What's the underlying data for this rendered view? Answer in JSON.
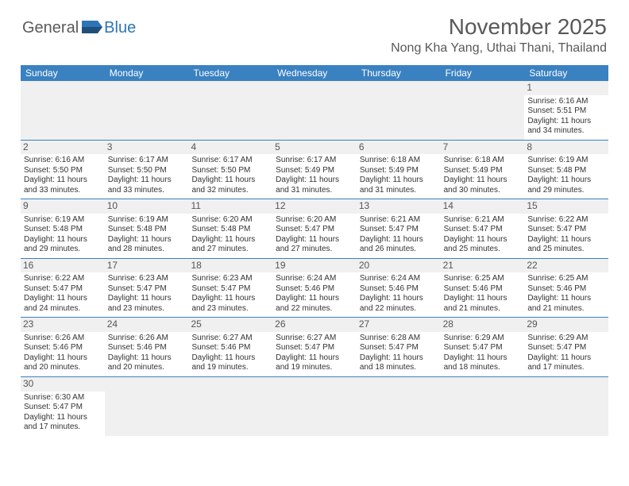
{
  "brand": {
    "part1": "General",
    "part2": "Blue"
  },
  "title": "November 2025",
  "location": "Nong Kha Yang, Uthai Thani, Thailand",
  "colors": {
    "header_bg": "#3a81c1",
    "header_text": "#ffffff",
    "daynum_bg": "#f0f0f0",
    "border": "#3a81c1",
    "title_color": "#595959",
    "text_color": "#333333"
  },
  "day_labels": [
    "Sunday",
    "Monday",
    "Tuesday",
    "Wednesday",
    "Thursday",
    "Friday",
    "Saturday"
  ],
  "weeks": [
    [
      null,
      null,
      null,
      null,
      null,
      null,
      {
        "n": "1",
        "sr": "Sunrise: 6:16 AM",
        "ss": "Sunset: 5:51 PM",
        "dl": "Daylight: 11 hours and 34 minutes."
      }
    ],
    [
      {
        "n": "2",
        "sr": "Sunrise: 6:16 AM",
        "ss": "Sunset: 5:50 PM",
        "dl": "Daylight: 11 hours and 33 minutes."
      },
      {
        "n": "3",
        "sr": "Sunrise: 6:17 AM",
        "ss": "Sunset: 5:50 PM",
        "dl": "Daylight: 11 hours and 33 minutes."
      },
      {
        "n": "4",
        "sr": "Sunrise: 6:17 AM",
        "ss": "Sunset: 5:50 PM",
        "dl": "Daylight: 11 hours and 32 minutes."
      },
      {
        "n": "5",
        "sr": "Sunrise: 6:17 AM",
        "ss": "Sunset: 5:49 PM",
        "dl": "Daylight: 11 hours and 31 minutes."
      },
      {
        "n": "6",
        "sr": "Sunrise: 6:18 AM",
        "ss": "Sunset: 5:49 PM",
        "dl": "Daylight: 11 hours and 31 minutes."
      },
      {
        "n": "7",
        "sr": "Sunrise: 6:18 AM",
        "ss": "Sunset: 5:49 PM",
        "dl": "Daylight: 11 hours and 30 minutes."
      },
      {
        "n": "8",
        "sr": "Sunrise: 6:19 AM",
        "ss": "Sunset: 5:48 PM",
        "dl": "Daylight: 11 hours and 29 minutes."
      }
    ],
    [
      {
        "n": "9",
        "sr": "Sunrise: 6:19 AM",
        "ss": "Sunset: 5:48 PM",
        "dl": "Daylight: 11 hours and 29 minutes."
      },
      {
        "n": "10",
        "sr": "Sunrise: 6:19 AM",
        "ss": "Sunset: 5:48 PM",
        "dl": "Daylight: 11 hours and 28 minutes."
      },
      {
        "n": "11",
        "sr": "Sunrise: 6:20 AM",
        "ss": "Sunset: 5:48 PM",
        "dl": "Daylight: 11 hours and 27 minutes."
      },
      {
        "n": "12",
        "sr": "Sunrise: 6:20 AM",
        "ss": "Sunset: 5:47 PM",
        "dl": "Daylight: 11 hours and 27 minutes."
      },
      {
        "n": "13",
        "sr": "Sunrise: 6:21 AM",
        "ss": "Sunset: 5:47 PM",
        "dl": "Daylight: 11 hours and 26 minutes."
      },
      {
        "n": "14",
        "sr": "Sunrise: 6:21 AM",
        "ss": "Sunset: 5:47 PM",
        "dl": "Daylight: 11 hours and 25 minutes."
      },
      {
        "n": "15",
        "sr": "Sunrise: 6:22 AM",
        "ss": "Sunset: 5:47 PM",
        "dl": "Daylight: 11 hours and 25 minutes."
      }
    ],
    [
      {
        "n": "16",
        "sr": "Sunrise: 6:22 AM",
        "ss": "Sunset: 5:47 PM",
        "dl": "Daylight: 11 hours and 24 minutes."
      },
      {
        "n": "17",
        "sr": "Sunrise: 6:23 AM",
        "ss": "Sunset: 5:47 PM",
        "dl": "Daylight: 11 hours and 23 minutes."
      },
      {
        "n": "18",
        "sr": "Sunrise: 6:23 AM",
        "ss": "Sunset: 5:47 PM",
        "dl": "Daylight: 11 hours and 23 minutes."
      },
      {
        "n": "19",
        "sr": "Sunrise: 6:24 AM",
        "ss": "Sunset: 5:46 PM",
        "dl": "Daylight: 11 hours and 22 minutes."
      },
      {
        "n": "20",
        "sr": "Sunrise: 6:24 AM",
        "ss": "Sunset: 5:46 PM",
        "dl": "Daylight: 11 hours and 22 minutes."
      },
      {
        "n": "21",
        "sr": "Sunrise: 6:25 AM",
        "ss": "Sunset: 5:46 PM",
        "dl": "Daylight: 11 hours and 21 minutes."
      },
      {
        "n": "22",
        "sr": "Sunrise: 6:25 AM",
        "ss": "Sunset: 5:46 PM",
        "dl": "Daylight: 11 hours and 21 minutes."
      }
    ],
    [
      {
        "n": "23",
        "sr": "Sunrise: 6:26 AM",
        "ss": "Sunset: 5:46 PM",
        "dl": "Daylight: 11 hours and 20 minutes."
      },
      {
        "n": "24",
        "sr": "Sunrise: 6:26 AM",
        "ss": "Sunset: 5:46 PM",
        "dl": "Daylight: 11 hours and 20 minutes."
      },
      {
        "n": "25",
        "sr": "Sunrise: 6:27 AM",
        "ss": "Sunset: 5:46 PM",
        "dl": "Daylight: 11 hours and 19 minutes."
      },
      {
        "n": "26",
        "sr": "Sunrise: 6:27 AM",
        "ss": "Sunset: 5:47 PM",
        "dl": "Daylight: 11 hours and 19 minutes."
      },
      {
        "n": "27",
        "sr": "Sunrise: 6:28 AM",
        "ss": "Sunset: 5:47 PM",
        "dl": "Daylight: 11 hours and 18 minutes."
      },
      {
        "n": "28",
        "sr": "Sunrise: 6:29 AM",
        "ss": "Sunset: 5:47 PM",
        "dl": "Daylight: 11 hours and 18 minutes."
      },
      {
        "n": "29",
        "sr": "Sunrise: 6:29 AM",
        "ss": "Sunset: 5:47 PM",
        "dl": "Daylight: 11 hours and 17 minutes."
      }
    ],
    [
      {
        "n": "30",
        "sr": "Sunrise: 6:30 AM",
        "ss": "Sunset: 5:47 PM",
        "dl": "Daylight: 11 hours and 17 minutes."
      },
      null,
      null,
      null,
      null,
      null,
      null
    ]
  ]
}
